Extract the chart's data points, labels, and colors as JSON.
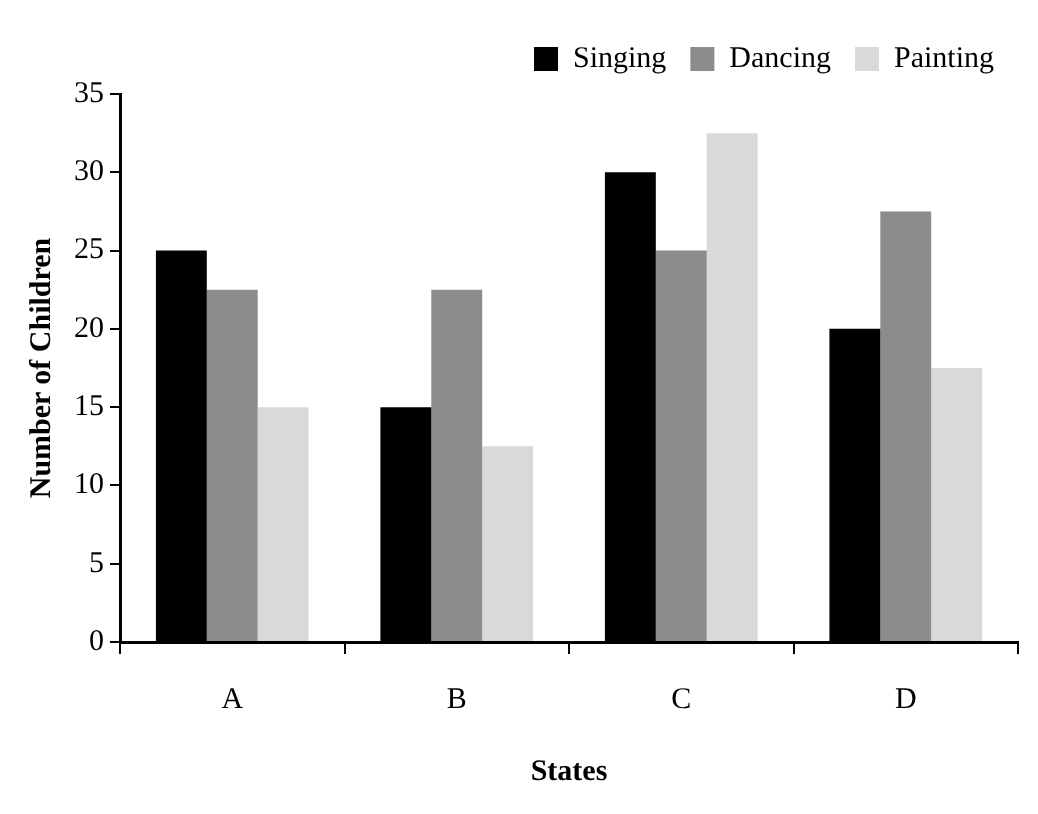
{
  "chart_data": {
    "type": "bar",
    "xlabel": "States",
    "ylabel": "Number of Children",
    "categories": [
      "A",
      "B",
      "C",
      "D"
    ],
    "series": [
      {
        "name": "Singing",
        "color": "#000000",
        "values": [
          25,
          15,
          30,
          20
        ]
      },
      {
        "name": "Dancing",
        "color": "#8c8c8c",
        "values": [
          22.5,
          22.5,
          25,
          27.5
        ]
      },
      {
        "name": "Painting",
        "color": "#d9d9d9",
        "values": [
          15,
          12.5,
          32.5,
          17.5
        ]
      }
    ],
    "ylim": [
      0,
      35
    ],
    "yticks": [
      0,
      5,
      10,
      15,
      20,
      25,
      30,
      35
    ],
    "grid": false,
    "legend": "top right"
  }
}
